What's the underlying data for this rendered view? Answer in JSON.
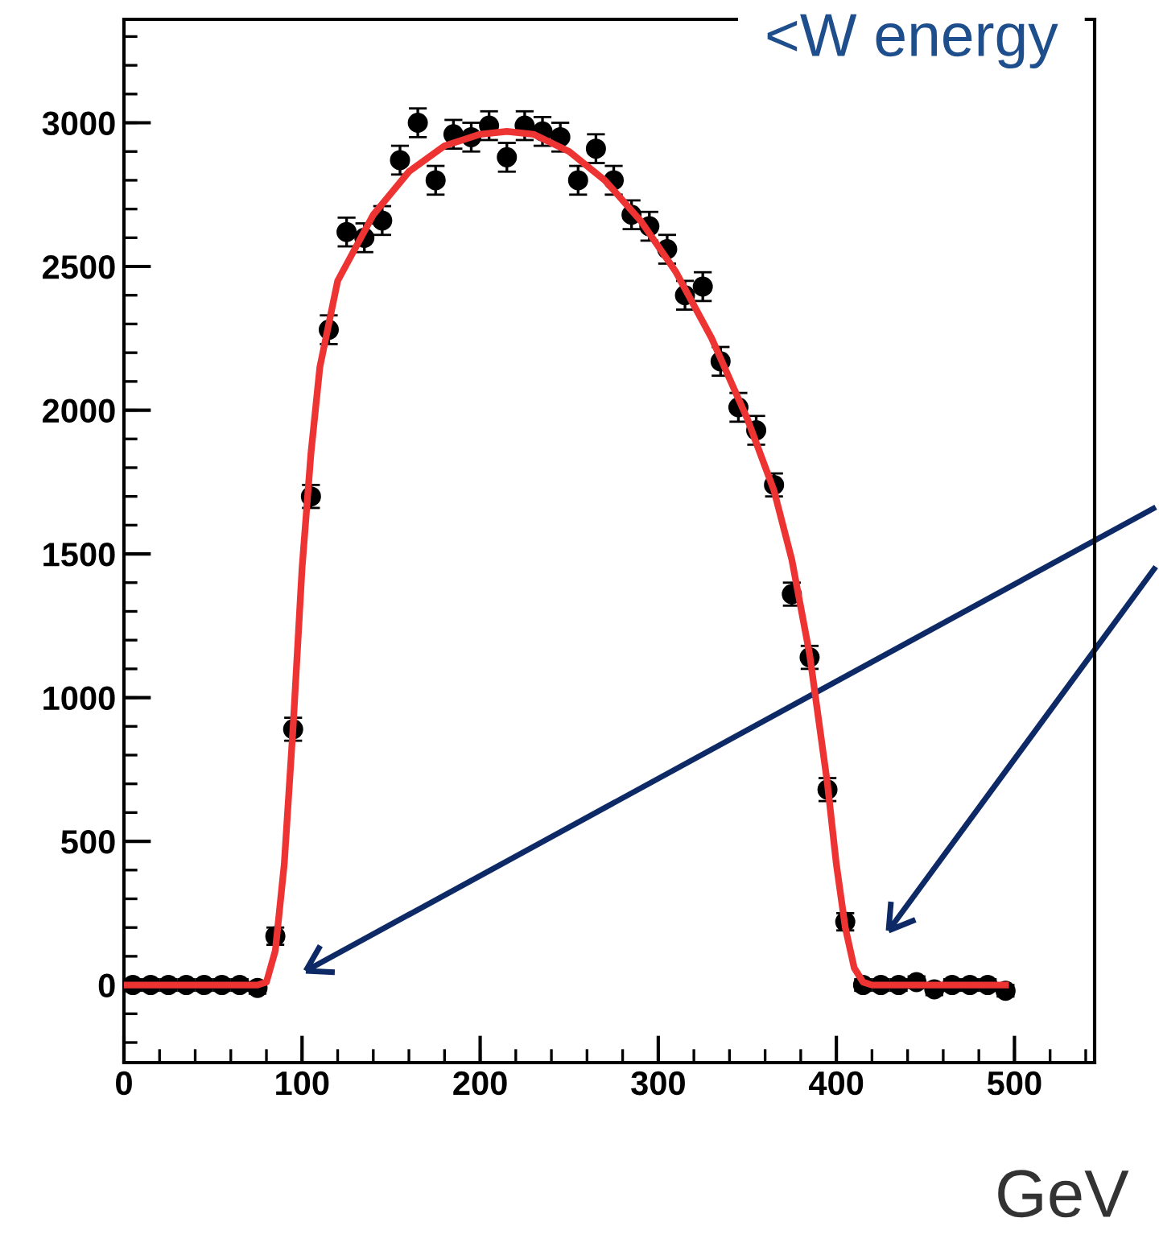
{
  "chart_data": {
    "type": "scatter",
    "title": "<W energy",
    "xlabel": "GeV",
    "xlim": [
      0,
      545
    ],
    "ylim": [
      -270,
      3360
    ],
    "xticks": [
      0,
      100,
      200,
      300,
      400,
      500
    ],
    "yticks": [
      0,
      500,
      1000,
      1500,
      2000,
      2500,
      3000
    ],
    "grid": false,
    "legend": false,
    "marker": "circle",
    "series": [
      {
        "color": "#000000",
        "x": [
          5,
          15,
          25,
          35,
          45,
          55,
          65,
          75,
          85,
          95,
          105,
          115,
          125,
          135,
          145,
          155,
          165,
          175,
          185,
          195,
          205,
          215,
          225,
          235,
          245,
          255,
          265,
          275,
          285,
          295,
          305,
          315,
          325,
          335,
          345,
          355,
          365,
          375,
          385,
          395,
          405,
          415,
          425,
          435,
          445,
          455,
          465,
          475,
          485,
          495
        ],
        "values": [
          0,
          0,
          0,
          0,
          0,
          0,
          0,
          -10,
          170,
          890,
          1700,
          2280,
          2620,
          2600,
          2660,
          2870,
          3000,
          2800,
          2960,
          2950,
          2990,
          2880,
          2990,
          2970,
          2950,
          2800,
          2910,
          2800,
          2680,
          2640,
          2560,
          2400,
          2430,
          2170,
          2010,
          1930,
          1740,
          1360,
          1140,
          680,
          220,
          0,
          0,
          0,
          10,
          -15,
          0,
          0,
          0,
          -20
        ],
        "errors": [
          20,
          20,
          20,
          20,
          20,
          20,
          20,
          20,
          30,
          40,
          40,
          50,
          50,
          50,
          50,
          50,
          50,
          50,
          50,
          50,
          50,
          50,
          50,
          50,
          50,
          50,
          50,
          50,
          50,
          50,
          50,
          50,
          50,
          50,
          50,
          50,
          40,
          40,
          40,
          40,
          30,
          20,
          20,
          20,
          20,
          20,
          20,
          20,
          20,
          20
        ]
      },
      {
        "type": "line",
        "color": "#ee3333",
        "line_style": "solid",
        "marker": "none",
        "x": [
          0,
          75,
          80,
          85,
          90,
          95,
          100,
          105,
          110,
          120,
          140,
          160,
          180,
          200,
          215,
          230,
          250,
          270,
          290,
          310,
          330,
          350,
          365,
          375,
          385,
          395,
          400,
          405,
          410,
          415,
          420,
          495
        ],
        "values": [
          0,
          0,
          10,
          120,
          420,
          900,
          1450,
          1850,
          2150,
          2450,
          2680,
          2830,
          2920,
          2960,
          2970,
          2960,
          2900,
          2800,
          2660,
          2480,
          2250,
          1970,
          1720,
          1480,
          1150,
          700,
          420,
          200,
          60,
          10,
          0,
          0
        ]
      }
    ]
  }
}
